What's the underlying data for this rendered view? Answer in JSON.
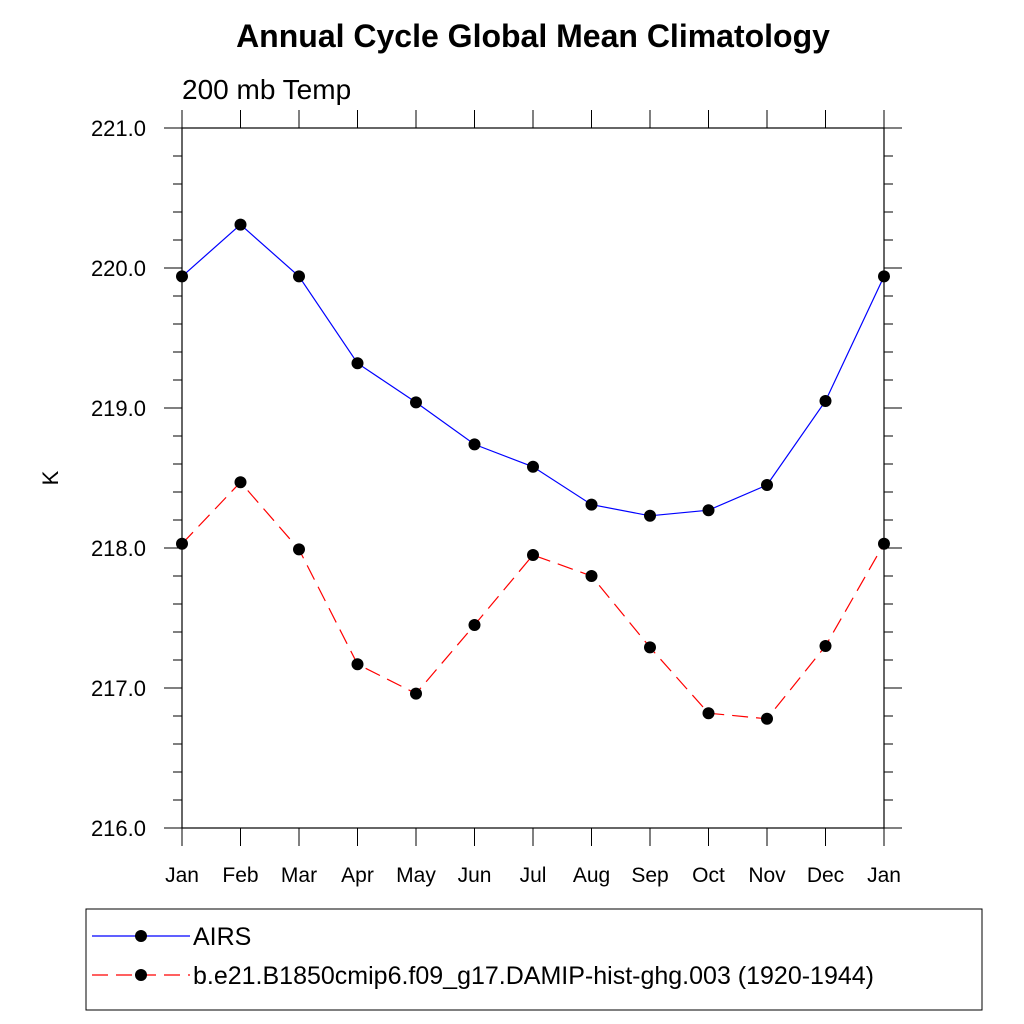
{
  "chart_data": {
    "type": "line",
    "title": "Annual Cycle Global Mean Climatology",
    "subtitle": "200 mb Temp",
    "ylabel": "K",
    "xlabel": "",
    "categories": [
      "Jan",
      "Feb",
      "Mar",
      "Apr",
      "May",
      "Jun",
      "Jul",
      "Aug",
      "Sep",
      "Oct",
      "Nov",
      "Dec",
      "Jan"
    ],
    "ylim": [
      216.0,
      221.0
    ],
    "yticks": [
      "216.0",
      "217.0",
      "218.0",
      "219.0",
      "220.0",
      "221.0"
    ],
    "series": [
      {
        "name": "AIRS",
        "color": "#0000ff",
        "dash": "solid",
        "values": [
          219.94,
          220.31,
          219.94,
          219.32,
          219.04,
          218.74,
          218.58,
          218.31,
          218.23,
          218.27,
          218.45,
          219.05,
          219.94
        ]
      },
      {
        "name": "b.e21.B1850cmip6.f09_g17.DAMIP-hist-ghg.003 (1920-1944)",
        "color": "#ff0000",
        "dash": "dashed",
        "values": [
          218.03,
          218.47,
          217.99,
          217.17,
          216.96,
          217.45,
          217.95,
          217.8,
          217.29,
          216.82,
          216.78,
          217.3,
          218.03
        ]
      }
    ],
    "grid": false,
    "legend_position": "bottom"
  }
}
